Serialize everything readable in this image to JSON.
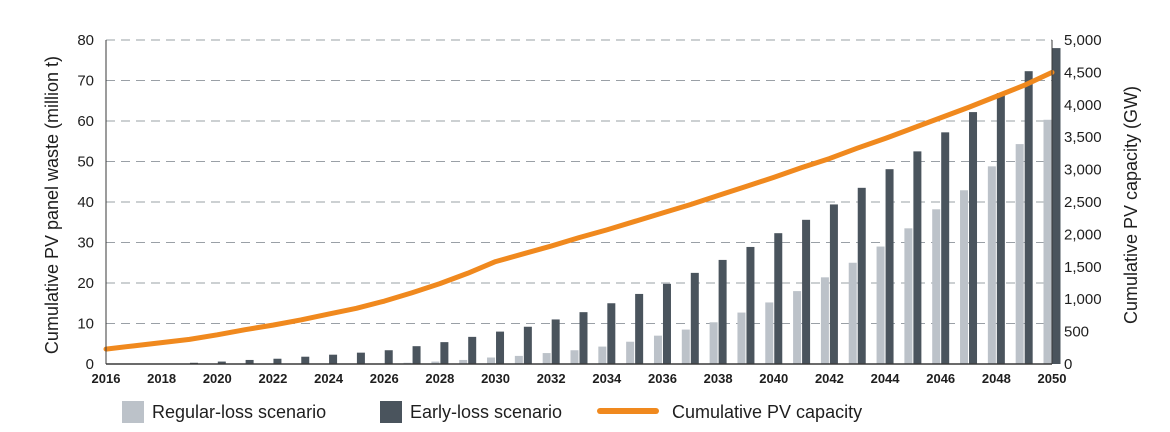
{
  "chart_data": {
    "type": "bar",
    "x": [
      2016,
      2017,
      2018,
      2019,
      2020,
      2021,
      2022,
      2023,
      2024,
      2025,
      2026,
      2027,
      2028,
      2029,
      2030,
      2031,
      2032,
      2033,
      2034,
      2035,
      2036,
      2037,
      2038,
      2039,
      2040,
      2041,
      2042,
      2043,
      2044,
      2045,
      2046,
      2047,
      2048,
      2049,
      2050
    ],
    "x_tick_labels": [
      "2016",
      "2018",
      "2020",
      "2022",
      "2024",
      "2026",
      "2028",
      "2030",
      "2032",
      "2034",
      "2036",
      "2038",
      "2040",
      "2042",
      "2044",
      "2046",
      "2048",
      "2050"
    ],
    "ylabel": "Cumulative PV panel waste (million t)",
    "ylim": [
      0,
      80
    ],
    "y_ticks": [
      "0",
      "10",
      "20",
      "30",
      "40",
      "50",
      "60",
      "70",
      "80"
    ],
    "y2label": "Cumulative PV capacity (GW)",
    "y2lim": [
      0,
      5000
    ],
    "y2_ticks": [
      "0",
      "500",
      "1,000",
      "1,500",
      "2,000",
      "2,500",
      "3,000",
      "3,500",
      "4,000",
      "4,500",
      "5,000"
    ],
    "grid": "horizontal dashed",
    "legend_position": "bottom",
    "series": [
      {
        "name": "Regular-loss scenario",
        "kind": "bar",
        "axis": "left",
        "color": "#bcc2c9",
        "values": [
          0,
          0,
          0,
          0,
          0,
          0,
          0,
          0,
          0,
          0,
          0.1,
          0.3,
          0.6,
          1.0,
          1.6,
          2.0,
          2.7,
          3.4,
          4.3,
          5.5,
          7.0,
          8.5,
          10.3,
          12.7,
          15.2,
          18.0,
          21.4,
          25.0,
          29.0,
          33.5,
          38.2,
          42.9,
          48.8,
          54.3,
          60.3
        ]
      },
      {
        "name": "Early-loss scenario",
        "kind": "bar",
        "axis": "left",
        "color": "#4a545d",
        "values": [
          0,
          0,
          0.1,
          0.3,
          0.6,
          1.0,
          1.3,
          1.8,
          2.3,
          2.8,
          3.4,
          4.4,
          5.4,
          6.7,
          8.0,
          9.2,
          11.0,
          12.8,
          15.0,
          17.3,
          19.8,
          22.5,
          25.7,
          28.9,
          32.3,
          35.6,
          39.4,
          43.5,
          48.1,
          52.5,
          57.2,
          62.2,
          66.9,
          72.3,
          78.0
        ]
      },
      {
        "name": "Cumulative PV capacity",
        "kind": "line",
        "axis": "right",
        "color": "#f0891e",
        "values": [
          230,
          280,
          330,
          380,
          450,
          530,
          600,
          680,
          770,
          860,
          970,
          1100,
          1240,
          1400,
          1580,
          1700,
          1820,
          1950,
          2070,
          2200,
          2330,
          2460,
          2600,
          2740,
          2880,
          3030,
          3170,
          3330,
          3480,
          3640,
          3800,
          3960,
          4130,
          4300,
          4500
        ]
      }
    ]
  }
}
